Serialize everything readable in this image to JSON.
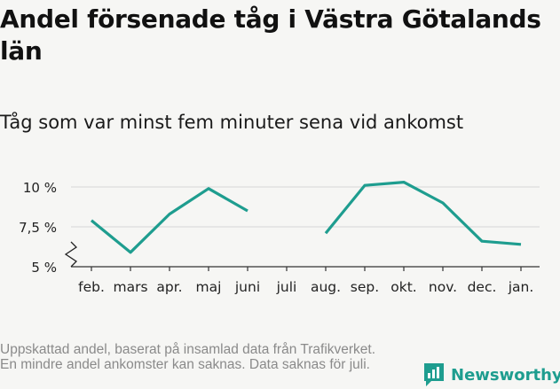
{
  "title": "Andel försenade tåg i Västra Götalands län",
  "subtitle": "Tåg som var minst fem minuter sena vid ankomst",
  "footer_note": "Uppskattad andel, baserat på insamlad data från Trafikverket. En mindre andel ankomster kan saknas. Data saknas för juli.",
  "brand": {
    "name": "Newsworthy",
    "color": "#1e9d8f"
  },
  "chart_data": {
    "type": "line",
    "categories": [
      "feb.",
      "mars",
      "apr.",
      "maj",
      "juni",
      "juli",
      "aug.",
      "sep.",
      "okt.",
      "nov.",
      "dec.",
      "jan."
    ],
    "series": [
      {
        "values": [
          7.9,
          5.9,
          8.3,
          9.9,
          8.5,
          null,
          7.1,
          10.1,
          10.3,
          9.0,
          6.6,
          6.4
        ],
        "color": "#1e9d8f"
      }
    ],
    "y_ticks": [
      5,
      7.5,
      10
    ],
    "y_tick_labels": [
      "5 %",
      "7,5 %",
      "10 %"
    ],
    "ylim": [
      5,
      10.8
    ],
    "axis_break": true,
    "grid": "horizontal",
    "legend": "none"
  }
}
